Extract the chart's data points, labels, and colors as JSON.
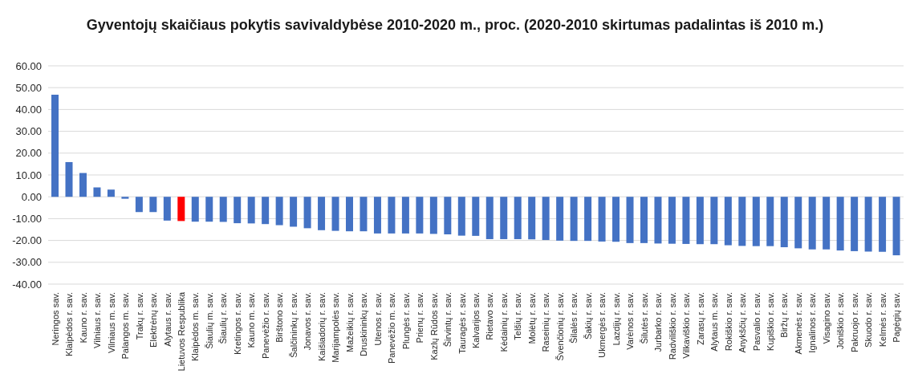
{
  "chart_data": {
    "type": "bar",
    "title": "Gyventojų skaičiaus pokytis savivaldybėse 2010-2020 m., proc. (2020-2010 skirtumas padalintas iš 2010 m.)",
    "categories": [
      "Neringos sav.",
      "Klaipėdos r. sav.",
      "Kauno r. sav.",
      "Vilniaus r. sav.",
      "Vilniaus m. sav.",
      "Palangos m. sav.",
      "Trakų r. sav.",
      "Elektrėnų sav.",
      "Alytaus r. sav.",
      "Lietuvos Respublika",
      "Klaipėdos m. sav.",
      "Šiaulių m. sav.",
      "Šiaulių r. sav.",
      "Kretingos r. sav.",
      "Kauno m. sav.",
      "Panevėžio r. sav.",
      "Birštono sav.",
      "Šalčininkų r. sav.",
      "Jonavos r. sav.",
      "Kaišiadorių r. sav.",
      "Marijampolės sav.",
      "Mažeikių r. sav.",
      "Druskininkų sav.",
      "Utenos r. sav.",
      "Panevėžio m. sav.",
      "Plungės r. sav.",
      "Prienų r. sav.",
      "Kazlų Rūdos sav.",
      "Širvintų r. sav.",
      "Tauragės r. sav.",
      "Kalvarijos sav.",
      "Rietavo sav.",
      "Kėdainių r. sav.",
      "Telšių r. sav.",
      "Molėtų r. sav.",
      "Raseinių r. sav.",
      "Švenčionių r. sav.",
      "Šilalės r. sav.",
      "Šakių r. sav.",
      "Ukmergės r. sav.",
      "Lazdijų r. sav.",
      "Varėnos r. sav.",
      "Šilutės r. sav.",
      "Jurbarko r. sav.",
      "Radviliškio r. sav.",
      "Vilkaviškio r. sav.",
      "Zarasų r. sav.",
      "Alytaus m. sav.",
      "Rokiškio r. sav.",
      "Anykščių r. sav.",
      "Pasvalio r. sav.",
      "Kupiškio r. sav.",
      "Biržų r. sav.",
      "Akmenės r. sav.",
      "Ignalinos r. sav.",
      "Visagino sav.",
      "Joniškio r. sav.",
      "Pakruojo r. sav.",
      "Skuodo r. sav.",
      "Kelmės r. sav.",
      "Pagėgių sav."
    ],
    "values": [
      46.8,
      15.9,
      10.9,
      4.3,
      3.3,
      -0.9,
      -7.0,
      -7.0,
      -10.9,
      -11.1,
      -11.4,
      -11.4,
      -11.5,
      -12.1,
      -12.2,
      -12.5,
      -13.0,
      -13.7,
      -14.4,
      -15.3,
      -15.6,
      -15.8,
      -15.8,
      -16.8,
      -16.8,
      -16.8,
      -16.8,
      -17.0,
      -17.2,
      -17.8,
      -17.9,
      -19.4,
      -19.4,
      -19.4,
      -19.5,
      -19.8,
      -20.1,
      -20.2,
      -20.2,
      -20.5,
      -20.6,
      -21.2,
      -21.2,
      -21.4,
      -21.5,
      -21.6,
      -21.7,
      -21.7,
      -22.2,
      -22.5,
      -22.6,
      -22.6,
      -23.1,
      -23.6,
      -24.1,
      -24.1,
      -24.6,
      -24.9,
      -25.1,
      -25.2,
      -26.8
    ],
    "colors": [
      "#4472c4",
      "#4472c4",
      "#4472c4",
      "#4472c4",
      "#4472c4",
      "#4472c4",
      "#4472c4",
      "#4472c4",
      "#4472c4",
      "#ff0000",
      "#4472c4",
      "#4472c4",
      "#4472c4",
      "#4472c4",
      "#4472c4",
      "#4472c4",
      "#4472c4",
      "#4472c4",
      "#4472c4",
      "#4472c4",
      "#4472c4",
      "#4472c4",
      "#4472c4",
      "#4472c4",
      "#4472c4",
      "#4472c4",
      "#4472c4",
      "#4472c4",
      "#4472c4",
      "#4472c4",
      "#4472c4",
      "#4472c4",
      "#4472c4",
      "#4472c4",
      "#4472c4",
      "#4472c4",
      "#4472c4",
      "#4472c4",
      "#4472c4",
      "#4472c4",
      "#4472c4",
      "#4472c4",
      "#4472c4",
      "#4472c4",
      "#4472c4",
      "#4472c4",
      "#4472c4",
      "#4472c4",
      "#4472c4",
      "#4472c4",
      "#4472c4",
      "#4472c4",
      "#4472c4",
      "#4472c4",
      "#4472c4",
      "#4472c4",
      "#4472c4",
      "#4472c4",
      "#4472c4",
      "#4472c4",
      "#4472c4"
    ],
    "ylim": [
      -40,
      60
    ],
    "yticks": [
      {
        "value": -40,
        "label": "-40.00"
      },
      {
        "value": -30,
        "label": "-30.00"
      },
      {
        "value": -20,
        "label": "-20.00"
      },
      {
        "value": -10,
        "label": "-10.00"
      },
      {
        "value": 0,
        "label": "0.00"
      },
      {
        "value": 10,
        "label": "10.00"
      },
      {
        "value": 20,
        "label": "20.00"
      },
      {
        "value": 30,
        "label": "30.00"
      },
      {
        "value": 40,
        "label": "40.00"
      },
      {
        "value": 50,
        "label": "50.00"
      },
      {
        "value": 60,
        "label": "60.00"
      }
    ],
    "grid": "y"
  }
}
